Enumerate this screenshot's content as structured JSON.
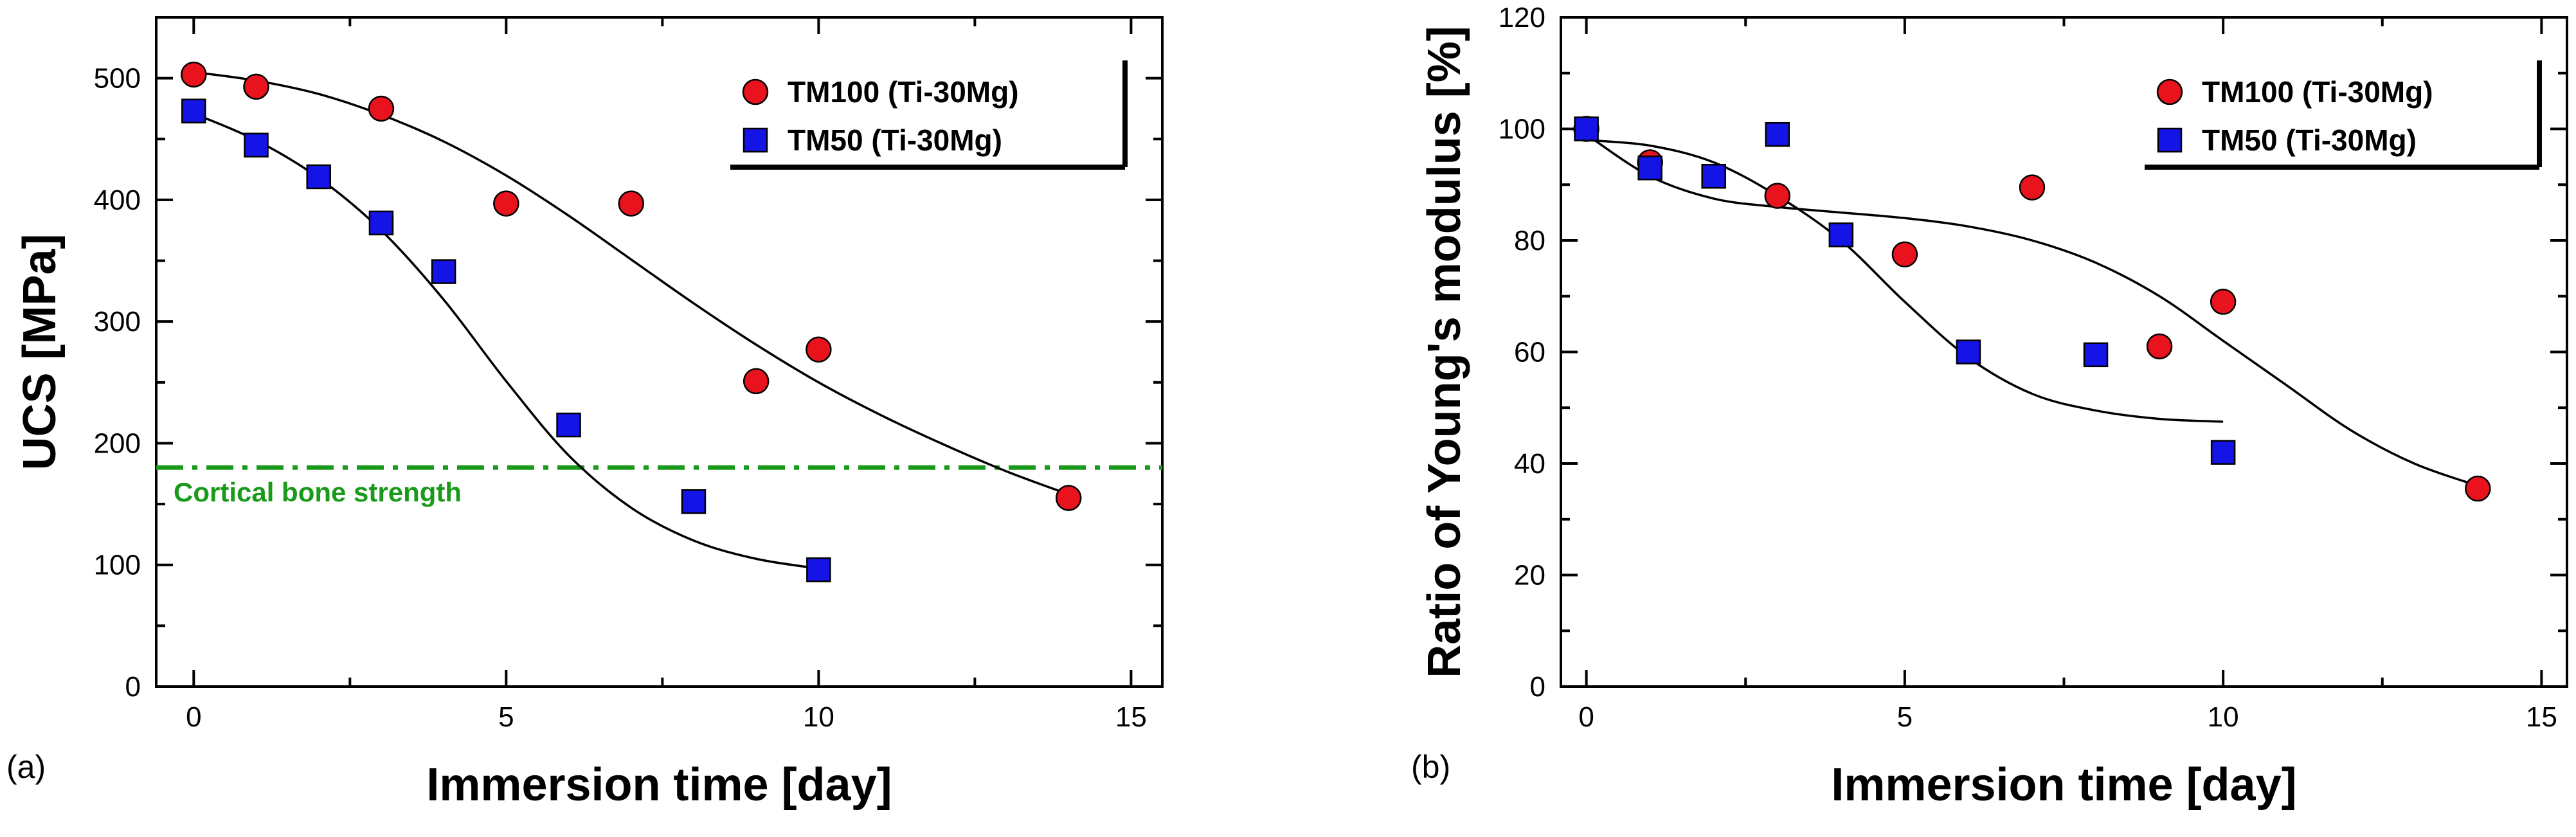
{
  "figure": {
    "charts": [
      "a",
      "b"
    ]
  },
  "chart_data": [
    {
      "type": "scatter",
      "panel_label": "(a)",
      "title": "",
      "xlabel": "Immersion time [day]",
      "ylabel": "UCS [MPa]",
      "xlim": [
        -0.6,
        15.5
      ],
      "ylim": [
        0,
        550
      ],
      "x_ticks": [
        0,
        5,
        10,
        15
      ],
      "y_ticks": [
        0,
        100,
        200,
        300,
        400,
        500
      ],
      "grid": false,
      "legend_position": "top-right",
      "series": [
        {
          "name": "TM100 (Ti-30Mg)",
          "marker": "circle",
          "color": "#e8131c",
          "x": [
            0,
            1,
            3,
            5,
            7,
            9,
            10,
            14
          ],
          "y": [
            503,
            493,
            475,
            397,
            397,
            251,
            277,
            155
          ],
          "fit": {
            "x": [
              0,
              1,
              2,
              3,
              4,
              5,
              6,
              7,
              8,
              9,
              10,
              11,
              12,
              13,
              14
            ],
            "y": [
              505,
              498,
              487,
              470,
              448,
              420,
              387,
              351,
              315,
              281,
              250,
              223,
              199,
              177,
              158
            ]
          }
        },
        {
          "name": "TM50 (Ti-30Mg)",
          "marker": "square",
          "color": "#1414e6",
          "x": [
            0,
            1,
            2,
            3,
            4,
            6,
            8,
            10
          ],
          "y": [
            473,
            445,
            419,
            381,
            341,
            215,
            152,
            96
          ],
          "fit": {
            "x": [
              0,
              1,
              2,
              3,
              4,
              5,
              6,
              7,
              8,
              9,
              10
            ],
            "y": [
              471,
              449,
              418,
              375,
              318,
              251,
              190,
              147,
              120,
              105,
              97
            ]
          }
        }
      ],
      "reference_line": {
        "label": "Cortical bone strength",
        "y": 180,
        "color": "#1a9a1a",
        "style": "dash-dot"
      }
    },
    {
      "type": "scatter",
      "panel_label": "(b)",
      "title": "",
      "xlabel": "Immersion time [day]",
      "ylabel": "Ratio of Young's modulus [%]",
      "xlim": [
        -0.4,
        15.4
      ],
      "ylim": [
        0,
        120
      ],
      "x_ticks": [
        0,
        5,
        10,
        15
      ],
      "y_ticks": [
        0,
        20,
        40,
        60,
        80,
        100,
        120
      ],
      "grid": false,
      "legend_position": "top-right",
      "series": [
        {
          "name": "TM100 (Ti-30Mg)",
          "marker": "circle",
          "color": "#e8131c",
          "x": [
            0,
            1,
            3,
            5,
            7,
            9,
            10,
            14
          ],
          "y": [
            100,
            94,
            88,
            77.5,
            89.5,
            61,
            69,
            35.5
          ],
          "fit": {
            "x": [
              0,
              1,
              2,
              3,
              4,
              5,
              6,
              7,
              8,
              9,
              10,
              11,
              12,
              13,
              14
            ],
            "y": [
              99,
              91.5,
              87.5,
              86,
              85,
              84,
              82.5,
              80,
              76,
              70,
              62,
              54,
              46,
              40,
              36
            ]
          }
        },
        {
          "name": "TM50 (Ti-30Mg)",
          "marker": "square",
          "color": "#1414e6",
          "x": [
            0,
            1,
            2,
            3,
            4,
            6,
            8,
            10
          ],
          "y": [
            100,
            93,
            91.5,
            99,
            81,
            60,
            59.5,
            42
          ],
          "fit": {
            "x": [
              0,
              1,
              2,
              3,
              4,
              5,
              6,
              7,
              8,
              9,
              10
            ],
            "y": [
              98,
              97,
              94,
              88,
              80,
              69,
              59,
              52.5,
              49.5,
              48,
              47.5
            ]
          }
        }
      ]
    }
  ]
}
